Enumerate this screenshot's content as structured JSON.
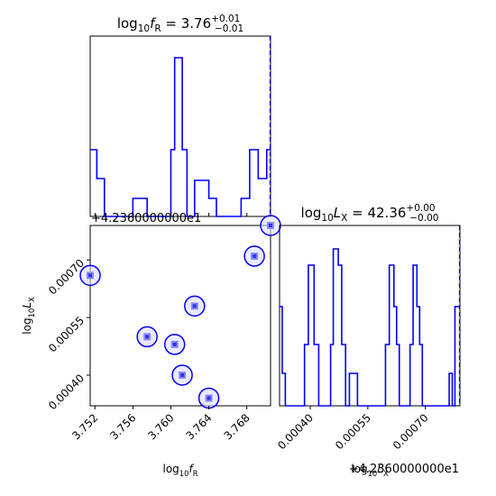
{
  "chart_data": [
    {
      "type": "histogram",
      "panel": "top-left",
      "title": {
        "base": "log",
        "sub": "10",
        "var": "f",
        "varsub": "R",
        "value": " = 3.76",
        "plus": "+0.01",
        "minus": "−0.01"
      },
      "xlim": [
        3.7515,
        3.7705
      ],
      "color": "#0000ff",
      "truth_line": 3.7705,
      "steps": [
        [
          3.7515,
          0.37
        ],
        [
          3.7522,
          0.21
        ],
        [
          3.753,
          0.0
        ],
        [
          3.756,
          0.1
        ],
        [
          3.7575,
          0.0
        ],
        [
          3.7596,
          0.0
        ],
        [
          3.76,
          0.37
        ],
        [
          3.7604,
          0.88
        ],
        [
          3.7612,
          0.37
        ],
        [
          3.7617,
          0.0
        ],
        [
          3.7625,
          0.2
        ],
        [
          3.764,
          0.1
        ],
        [
          3.7648,
          0.0
        ],
        [
          3.7674,
          0.1
        ],
        [
          3.7683,
          0.37
        ],
        [
          3.7692,
          0.21
        ],
        [
          3.7701,
          0.37
        ],
        [
          3.7705,
          0.37
        ]
      ]
    },
    {
      "type": "scatter",
      "panel": "bottom-left",
      "xlabel": {
        "base": "log",
        "sub": "10",
        "var": "f",
        "varsub": "R"
      },
      "ylabel": {
        "base": "log",
        "sub": "10",
        "var": "L",
        "varsub": "X"
      },
      "xlim": [
        3.7515,
        3.7705
      ],
      "ylim": [
        0.00032,
        0.00079
      ],
      "x_ticks": [
        3.752,
        3.756,
        3.76,
        3.764,
        3.768
      ],
      "x_tick_labels": [
        "3.752",
        "3.756",
        "3.760",
        "3.764",
        "3.768"
      ],
      "y_ticks": [
        0.0004,
        0.00055,
        0.0007
      ],
      "y_tick_labels": [
        "0.00040",
        "0.00055",
        "0.00070"
      ],
      "y_offset_label": "+4.2360000000e1",
      "color": "#0000ff",
      "points": [
        {
          "x": 3.7515,
          "y": 0.00066
        },
        {
          "x": 3.7575,
          "y": 0.0005
        },
        {
          "x": 3.7604,
          "y": 0.00048
        },
        {
          "x": 3.7612,
          "y": 0.0004
        },
        {
          "x": 3.7625,
          "y": 0.00058
        },
        {
          "x": 3.764,
          "y": 0.00034
        },
        {
          "x": 3.7688,
          "y": 0.00071
        },
        {
          "x": 3.7705,
          "y": 0.00079
        }
      ]
    },
    {
      "type": "histogram",
      "panel": "bottom-right",
      "title": {
        "base": "log",
        "sub": "10",
        "var": "L",
        "varsub": "X",
        "value": " = 42.36",
        "plus": "+0.00",
        "minus": "−0.00"
      },
      "xlabel": {
        "base": "log",
        "sub": "10",
        "var": "L",
        "varsub": "X"
      },
      "xlim": [
        0.00032,
        0.00079
      ],
      "x_ticks": [
        0.0004,
        0.00055,
        0.0007
      ],
      "x_tick_labels": [
        "0.00040",
        "0.00055",
        "0.00070"
      ],
      "x_offset_label": "+4.2360000000e1",
      "color": "#0000ff",
      "truth_line": 0.00079,
      "steps": [
        [
          0.00032,
          0.55
        ],
        [
          0.000327,
          0.18
        ],
        [
          0.000335,
          0.0
        ],
        [
          0.000385,
          0.34
        ],
        [
          0.000395,
          0.78
        ],
        [
          0.00041,
          0.34
        ],
        [
          0.000422,
          0.0
        ],
        [
          0.000453,
          0.34
        ],
        [
          0.00046,
          0.87
        ],
        [
          0.000473,
          0.78
        ],
        [
          0.000482,
          0.34
        ],
        [
          0.000492,
          0.0
        ],
        [
          0.000502,
          0.18
        ],
        [
          0.000523,
          0.0
        ],
        [
          0.000596,
          0.34
        ],
        [
          0.000606,
          0.78
        ],
        [
          0.000618,
          0.55
        ],
        [
          0.000625,
          0.34
        ],
        [
          0.000632,
          0.0
        ],
        [
          0.00066,
          0.34
        ],
        [
          0.000668,
          0.78
        ],
        [
          0.000678,
          0.55
        ],
        [
          0.000685,
          0.34
        ],
        [
          0.000692,
          0.0
        ],
        [
          0.000762,
          0.18
        ],
        [
          0.00077,
          0.0
        ],
        [
          0.000777,
          0.55
        ],
        [
          0.00079,
          0.55
        ]
      ]
    }
  ]
}
